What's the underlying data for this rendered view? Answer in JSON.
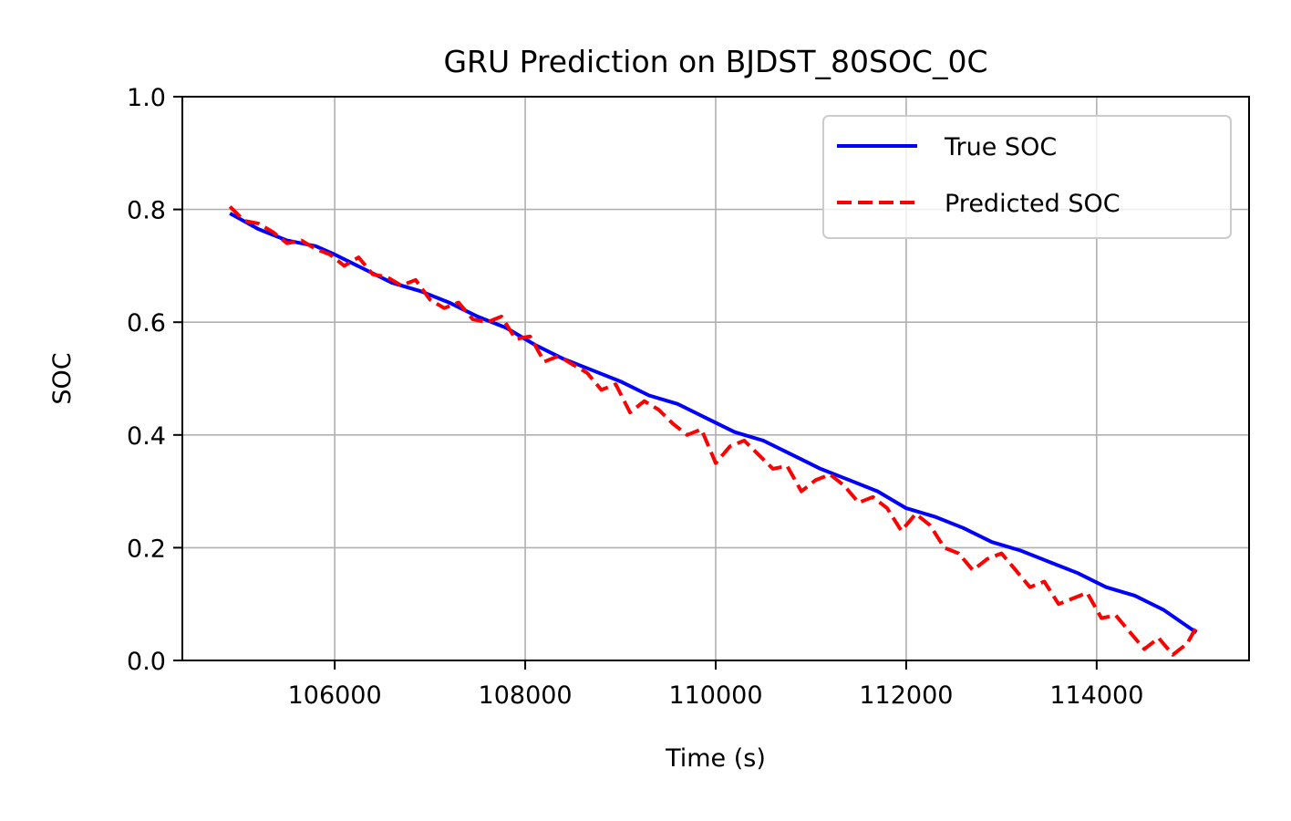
{
  "chart_data": {
    "type": "line",
    "title": "GRU Prediction on BJDST_80SOC_0C",
    "xlabel": "Time (s)",
    "ylabel": "SOC",
    "xlim": [
      104400,
      115600
    ],
    "ylim": [
      0.0,
      1.0
    ],
    "xticks": [
      106000,
      108000,
      110000,
      112000,
      114000
    ],
    "xtick_labels": [
      "106000",
      "108000",
      "110000",
      "112000",
      "114000"
    ],
    "yticks": [
      0.0,
      0.2,
      0.4,
      0.6,
      0.8,
      1.0
    ],
    "ytick_labels": [
      "0.0",
      "0.2",
      "0.4",
      "0.6",
      "0.8",
      "1.0"
    ],
    "grid": true,
    "legend_position": "upper-right",
    "series": [
      {
        "name": "True SOC",
        "color": "#0000ff",
        "style": "solid",
        "x": [
          104900,
          105200,
          105500,
          105800,
          106000,
          106300,
          106600,
          106900,
          107200,
          107500,
          107800,
          108100,
          108400,
          108700,
          109000,
          109300,
          109600,
          109900,
          110200,
          110500,
          110800,
          111100,
          111400,
          111700,
          112000,
          112300,
          112600,
          112900,
          113200,
          113500,
          113800,
          114100,
          114400,
          114700,
          115000,
          115050
        ],
        "y": [
          0.793,
          0.765,
          0.745,
          0.735,
          0.72,
          0.695,
          0.67,
          0.655,
          0.635,
          0.61,
          0.59,
          0.56,
          0.535,
          0.515,
          0.495,
          0.47,
          0.455,
          0.43,
          0.405,
          0.39,
          0.365,
          0.34,
          0.32,
          0.3,
          0.27,
          0.255,
          0.235,
          0.21,
          0.195,
          0.175,
          0.155,
          0.13,
          0.115,
          0.09,
          0.055,
          0.05
        ]
      },
      {
        "name": "Predicted SOC",
        "color": "#ff0000",
        "style": "dashed",
        "x": [
          104900,
          105050,
          105200,
          105350,
          105500,
          105650,
          105800,
          105950,
          106100,
          106250,
          106400,
          106550,
          106700,
          106850,
          107000,
          107150,
          107300,
          107450,
          107600,
          107750,
          107900,
          108050,
          108200,
          108350,
          108500,
          108650,
          108800,
          108950,
          109100,
          109250,
          109400,
          109550,
          109700,
          109850,
          110000,
          110150,
          110300,
          110450,
          110600,
          110750,
          110900,
          111050,
          111200,
          111350,
          111500,
          111650,
          111800,
          111950,
          112100,
          112250,
          112400,
          112550,
          112700,
          112850,
          113000,
          113150,
          113300,
          113450,
          113600,
          113750,
          113900,
          114050,
          114200,
          114350,
          114500,
          114650,
          114800,
          114950,
          115050
        ],
        "y": [
          0.805,
          0.78,
          0.775,
          0.76,
          0.74,
          0.745,
          0.73,
          0.72,
          0.7,
          0.715,
          0.685,
          0.68,
          0.665,
          0.675,
          0.64,
          0.625,
          0.635,
          0.605,
          0.6,
          0.61,
          0.57,
          0.575,
          0.53,
          0.54,
          0.525,
          0.51,
          0.48,
          0.49,
          0.44,
          0.46,
          0.445,
          0.42,
          0.4,
          0.41,
          0.35,
          0.38,
          0.39,
          0.365,
          0.34,
          0.345,
          0.3,
          0.32,
          0.33,
          0.31,
          0.28,
          0.29,
          0.27,
          0.23,
          0.26,
          0.24,
          0.2,
          0.19,
          0.16,
          0.18,
          0.19,
          0.16,
          0.13,
          0.14,
          0.1,
          0.11,
          0.12,
          0.075,
          0.08,
          0.05,
          0.02,
          0.04,
          0.01,
          0.03,
          0.06
        ]
      }
    ]
  }
}
